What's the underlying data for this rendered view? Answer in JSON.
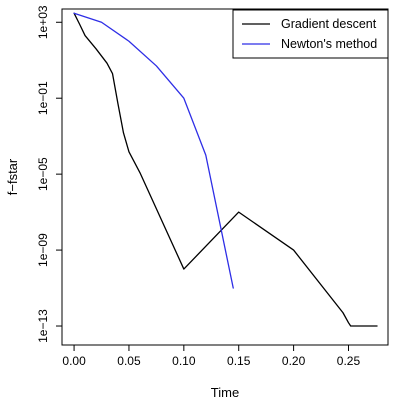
{
  "chart_data": {
    "type": "line",
    "title": "",
    "xlabel": "Time",
    "ylabel": "f−fstar",
    "x_scale": "linear",
    "y_scale": "log",
    "xlim": [
      -0.011,
      0.286
    ],
    "ylim": [
      1e-14,
      5000.0
    ],
    "x_ticks": [
      0.0,
      0.05,
      0.1,
      0.15,
      0.2,
      0.25
    ],
    "x_tick_labels": [
      "0.00",
      "0.05",
      "0.10",
      "0.15",
      "0.20",
      "0.25"
    ],
    "y_ticks": [
      1000.0,
      0.1,
      1e-05,
      1e-09,
      1e-13
    ],
    "y_tick_labels": [
      "1e+03",
      "1e−01",
      "1e−05",
      "1e−09",
      "1e−13"
    ],
    "grid": false,
    "legend_position": "top-right",
    "series": [
      {
        "name": "Gradient descent",
        "color": "#000000",
        "x": [
          0.0,
          0.005,
          0.01,
          0.02,
          0.03,
          0.035,
          0.04,
          0.045,
          0.05,
          0.06,
          0.1,
          0.15,
          0.2,
          0.245,
          0.25,
          0.252,
          0.276
        ],
        "y": [
          3000,
          800,
          200,
          40,
          7,
          2,
          0.05,
          0.0015,
          0.00015,
          1.2e-05,
          1e-10,
          1e-07,
          1e-09,
          5e-13,
          1.5e-13,
          1e-13,
          1e-13
        ]
      },
      {
        "name": "Newton's method",
        "color": "#2E2EE6",
        "x": [
          0.0,
          0.025,
          0.05,
          0.075,
          0.1,
          0.12,
          0.145
        ],
        "y": [
          3000,
          1000,
          100,
          5,
          0.1,
          0.0001,
          1e-11
        ]
      }
    ]
  }
}
